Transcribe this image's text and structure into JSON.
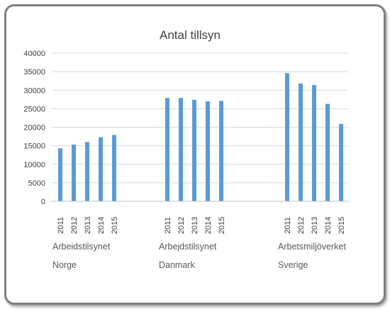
{
  "chart_data": {
    "type": "bar",
    "title": "Antal  tillsyn",
    "ylim": [
      0,
      40000
    ],
    "yticks": [
      0,
      5000,
      10000,
      15000,
      20000,
      25000,
      30000,
      35000,
      40000
    ],
    "grid": true,
    "colors": {
      "bar": "#5b9bd5",
      "grid": "#d9d9d9",
      "axis": "#bfbfbf"
    },
    "groups": [
      {
        "label_line1": "Arbeidstilsynet",
        "label_line2": "Norge",
        "years": [
          "2011",
          "2012",
          "2013",
          "2014",
          "2015"
        ],
        "values": [
          14300,
          15300,
          16000,
          17300,
          17900
        ]
      },
      {
        "label_line1": "Arbejdstilsynet",
        "label_line2": "Danmark",
        "years": [
          "2011",
          "2012",
          "2013",
          "2014",
          "2015"
        ],
        "values": [
          27900,
          27900,
          27400,
          27000,
          27100
        ]
      },
      {
        "label_line1": "Arbetsmiljöverket",
        "label_line2": "Sverige",
        "years": [
          "2011",
          "2012",
          "2013",
          "2014",
          "2015"
        ],
        "values": [
          34600,
          31800,
          31400,
          26300,
          20900
        ]
      }
    ]
  }
}
